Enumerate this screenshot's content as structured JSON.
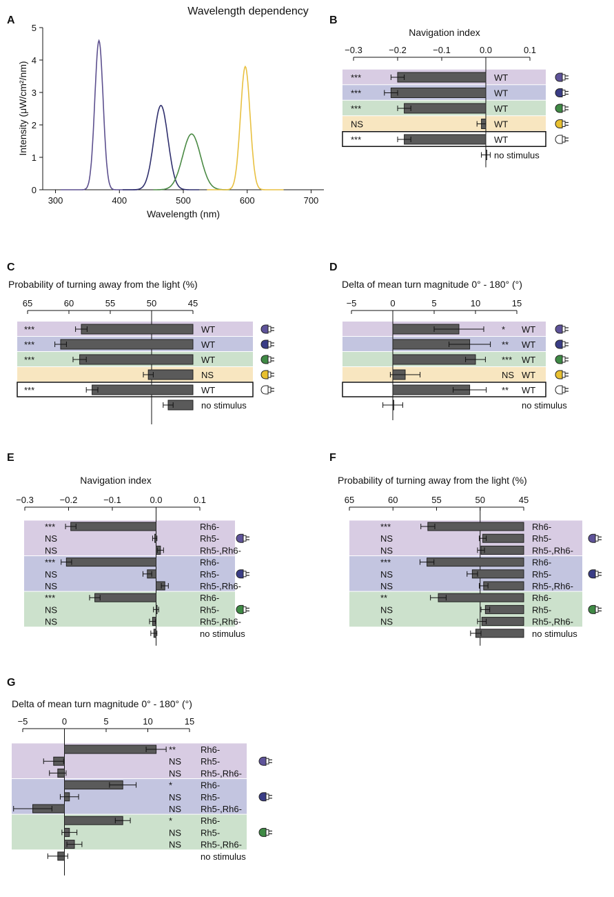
{
  "colors": {
    "uv": "#d8cce3",
    "blue": "#c3c5e0",
    "green": "#cce1cc",
    "yellow": "#f8e6c0",
    "uv_line": "#5c4f8e",
    "blue_line": "#2e2e6c",
    "green_line": "#4a8a44",
    "yellow_line": "#e8c040",
    "bar": "#5a5a5a"
  },
  "chart_data": [
    {
      "id": "A",
      "type": "line",
      "title": "Wavelength dependency",
      "xlabel": "Wavelength (nm)",
      "ylabel": "Intensity (μW/cm²/nm)",
      "xlim": [
        280,
        720
      ],
      "ylim": [
        0,
        5
      ],
      "xticks": [
        "300",
        "400",
        "500",
        "600",
        "700"
      ],
      "yticks": [
        "0",
        "1",
        "2",
        "3",
        "4",
        "5"
      ],
      "series": [
        {
          "name": "UV",
          "color_key": "uv_line",
          "peak": 368,
          "amp": 4.6,
          "sigma": 6.5
        },
        {
          "name": "Blue",
          "color_key": "blue_line",
          "peak": 465,
          "amp": 2.6,
          "sigma": 11
        },
        {
          "name": "Green",
          "color_key": "green_line",
          "peak": 513,
          "amp": 1.72,
          "sigma": 14
        },
        {
          "name": "Yellow",
          "color_key": "yellow_line",
          "peak": 597,
          "amp": 3.8,
          "sigma": 7.5
        }
      ]
    },
    {
      "id": "B",
      "type": "bar",
      "title": "Navigation index",
      "xlim": [
        -0.3,
        0.1
      ],
      "xticks": [
        "−0.3",
        "−0.2",
        "−0.1",
        "0.0",
        "0.1"
      ],
      "rows": [
        {
          "label": "WT",
          "sig": "***",
          "value": -0.2,
          "err": 0.015,
          "band": "uv",
          "icon": "uv"
        },
        {
          "label": "WT",
          "sig": "***",
          "value": -0.215,
          "err": 0.015,
          "band": "blue",
          "icon": "blue"
        },
        {
          "label": "WT",
          "sig": "***",
          "value": -0.185,
          "err": 0.015,
          "band": "green",
          "icon": "green"
        },
        {
          "label": "WT",
          "sig": "NS",
          "value": -0.01,
          "err": 0.01,
          "band": "yellow",
          "icon": "yellow"
        },
        {
          "label": "WT",
          "sig": "***",
          "value": -0.185,
          "err": 0.015,
          "band": "white",
          "icon": "white"
        },
        {
          "label": "no stimulus",
          "sig": "",
          "value": 0.0,
          "err": 0.01,
          "band": "",
          "icon": ""
        }
      ]
    },
    {
      "id": "C",
      "type": "bar",
      "title": "Probability of turning away from the light (%)",
      "xlim": [
        65,
        45
      ],
      "baseline": 45,
      "ref": 50,
      "xticks": [
        "65",
        "60",
        "55",
        "50",
        "45"
      ],
      "rows": [
        {
          "label": "WT",
          "sig": "***",
          "value": 58.5,
          "err": 0.7,
          "band": "uv",
          "icon": "uv"
        },
        {
          "label": "WT",
          "sig": "***",
          "value": 61.0,
          "err": 0.7,
          "band": "blue",
          "icon": "blue"
        },
        {
          "label": "WT",
          "sig": "***",
          "value": 58.7,
          "err": 0.8,
          "band": "green",
          "icon": "green"
        },
        {
          "label": "NS",
          "sig": "",
          "value": 50.4,
          "err": 0.6,
          "band": "yellow",
          "icon": "yellow",
          "sig_as_label_prefix": "NS"
        },
        {
          "label": "WT",
          "sig": "***",
          "value": 57.2,
          "err": 0.7,
          "band": "white",
          "icon": "white"
        },
        {
          "label": "no stimulus",
          "sig": "",
          "value": 48.0,
          "err": 0.6,
          "band": "",
          "icon": ""
        }
      ]
    },
    {
      "id": "D",
      "type": "bar",
      "title": "Delta of mean turn magnitude 0° - 180° (°)",
      "xlim": [
        -5,
        15
      ],
      "xticks": [
        "−5",
        "0",
        "5",
        "10",
        "15"
      ],
      "rows": [
        {
          "label": "WT",
          "sig": "*",
          "value": 8.0,
          "err": 3.0,
          "band": "uv",
          "icon": "uv"
        },
        {
          "label": "WT",
          "sig": "**",
          "value": 9.3,
          "err": 2.5,
          "band": "blue",
          "icon": "blue"
        },
        {
          "label": "WT",
          "sig": "***",
          "value": 10.0,
          "err": 1.2,
          "band": "green",
          "icon": "green"
        },
        {
          "label": "WT",
          "sig": "NS",
          "value": 1.5,
          "err": 1.8,
          "band": "yellow",
          "icon": "yellow"
        },
        {
          "label": "WT",
          "sig": "**",
          "value": 9.3,
          "err": 2.0,
          "band": "white",
          "icon": "white"
        },
        {
          "label": "no stimulus",
          "sig": "",
          "value": 0.0,
          "err": 1.2,
          "band": "",
          "icon": ""
        }
      ]
    },
    {
      "id": "E",
      "type": "bar",
      "title": "Navigation index",
      "xlim": [
        -0.3,
        0.1
      ],
      "xticks": [
        "−0.3",
        "−0.2",
        "−0.1",
        "0.0",
        "0.1"
      ],
      "groups": [
        {
          "band": "uv",
          "icon": "uv",
          "rows": [
            {
              "label": "Rh6-",
              "sig": "***",
              "value": -0.195,
              "err": 0.012
            },
            {
              "label": "Rh5-",
              "sig": "NS",
              "value": -0.003,
              "err": 0.005
            },
            {
              "label": "Rh5-,Rh6-",
              "sig": "NS",
              "value": 0.01,
              "err": 0.007
            }
          ]
        },
        {
          "band": "blue",
          "icon": "blue",
          "rows": [
            {
              "label": "Rh6-",
              "sig": "***",
              "value": -0.205,
              "err": 0.012
            },
            {
              "label": "Rh5-",
              "sig": "NS",
              "value": -0.02,
              "err": 0.01
            },
            {
              "label": "Rh5-,Rh6-",
              "sig": "NS",
              "value": 0.02,
              "err": 0.008
            }
          ]
        },
        {
          "band": "green",
          "icon": "green",
          "rows": [
            {
              "label": "Rh6-",
              "sig": "***",
              "value": -0.14,
              "err": 0.012
            },
            {
              "label": "Rh5-",
              "sig": "NS",
              "value": 0.0,
              "err": 0.006
            },
            {
              "label": "Rh5-,Rh6-",
              "sig": "NS",
              "value": -0.008,
              "err": 0.007
            }
          ]
        }
      ],
      "extra": {
        "label": "no stimulus",
        "value": -0.005,
        "err": 0.007
      }
    },
    {
      "id": "F",
      "type": "bar",
      "title": "Probability of turning away from the light (%)",
      "xlim": [
        65,
        45
      ],
      "baseline": 45,
      "ref": 50,
      "xticks": [
        "65",
        "60",
        "55",
        "50",
        "45"
      ],
      "groups": [
        {
          "band": "uv",
          "icon": "uv",
          "rows": [
            {
              "label": "Rh6-",
              "sig": "***",
              "value": 56.0,
              "err": 0.8
            },
            {
              "label": "Rh5-",
              "sig": "NS",
              "value": 49.7,
              "err": 0.4
            },
            {
              "label": "Rh5-,Rh6-",
              "sig": "NS",
              "value": 49.9,
              "err": 0.4
            }
          ]
        },
        {
          "band": "blue",
          "icon": "blue",
          "rows": [
            {
              "label": "Rh6-",
              "sig": "***",
              "value": 56.1,
              "err": 0.8
            },
            {
              "label": "Rh5-",
              "sig": "NS",
              "value": 50.9,
              "err": 0.6
            },
            {
              "label": "Rh5-,Rh6-",
              "sig": "NS",
              "value": 49.6,
              "err": 0.5
            }
          ]
        },
        {
          "band": "green",
          "icon": "green",
          "rows": [
            {
              "label": "Rh6-",
              "sig": "**",
              "value": 54.8,
              "err": 0.9
            },
            {
              "label": "Rh5-",
              "sig": "NS",
              "value": 49.4,
              "err": 0.5
            },
            {
              "label": "Rh5-,Rh6-",
              "sig": "NS",
              "value": 49.8,
              "err": 0.5
            }
          ]
        }
      ],
      "extra": {
        "label": "no stimulus",
        "value": 50.5,
        "err": 0.6
      }
    },
    {
      "id": "G",
      "type": "bar",
      "title": "Delta of mean turn magnitude 0° - 180° (°)",
      "xlim": [
        -5,
        15
      ],
      "xticks": [
        "−5",
        "0",
        "5",
        "10",
        "15"
      ],
      "groups": [
        {
          "band": "uv",
          "icon": "uv",
          "rows": [
            {
              "label": "Rh6-",
              "sig": "**",
              "value": 11.0,
              "err": 1.2
            },
            {
              "label": "Rh5-",
              "sig": "NS",
              "value": -1.3,
              "err": 1.2
            },
            {
              "label": "Rh5-,Rh6-",
              "sig": "NS",
              "value": -0.8,
              "err": 1.0
            }
          ]
        },
        {
          "band": "blue",
          "icon": "blue",
          "rows": [
            {
              "label": "Rh6-",
              "sig": "*",
              "value": 7.0,
              "err": 1.6
            },
            {
              "label": "Rh5-",
              "sig": "NS",
              "value": 0.6,
              "err": 1.1
            },
            {
              "label": "Rh5-,Rh6-",
              "sig": "NS",
              "value": -3.8,
              "err": 2.3
            }
          ]
        },
        {
          "band": "green",
          "icon": "green",
          "rows": [
            {
              "label": "Rh6-",
              "sig": "*",
              "value": 7.0,
              "err": 0.9
            },
            {
              "label": "Rh5-",
              "sig": "NS",
              "value": 0.6,
              "err": 0.9
            },
            {
              "label": "Rh5-,Rh6-",
              "sig": "NS",
              "value": 1.2,
              "err": 0.9
            }
          ]
        }
      ],
      "extra": {
        "label": "no stimulus",
        "value": -0.8,
        "err": 1.2
      }
    }
  ]
}
